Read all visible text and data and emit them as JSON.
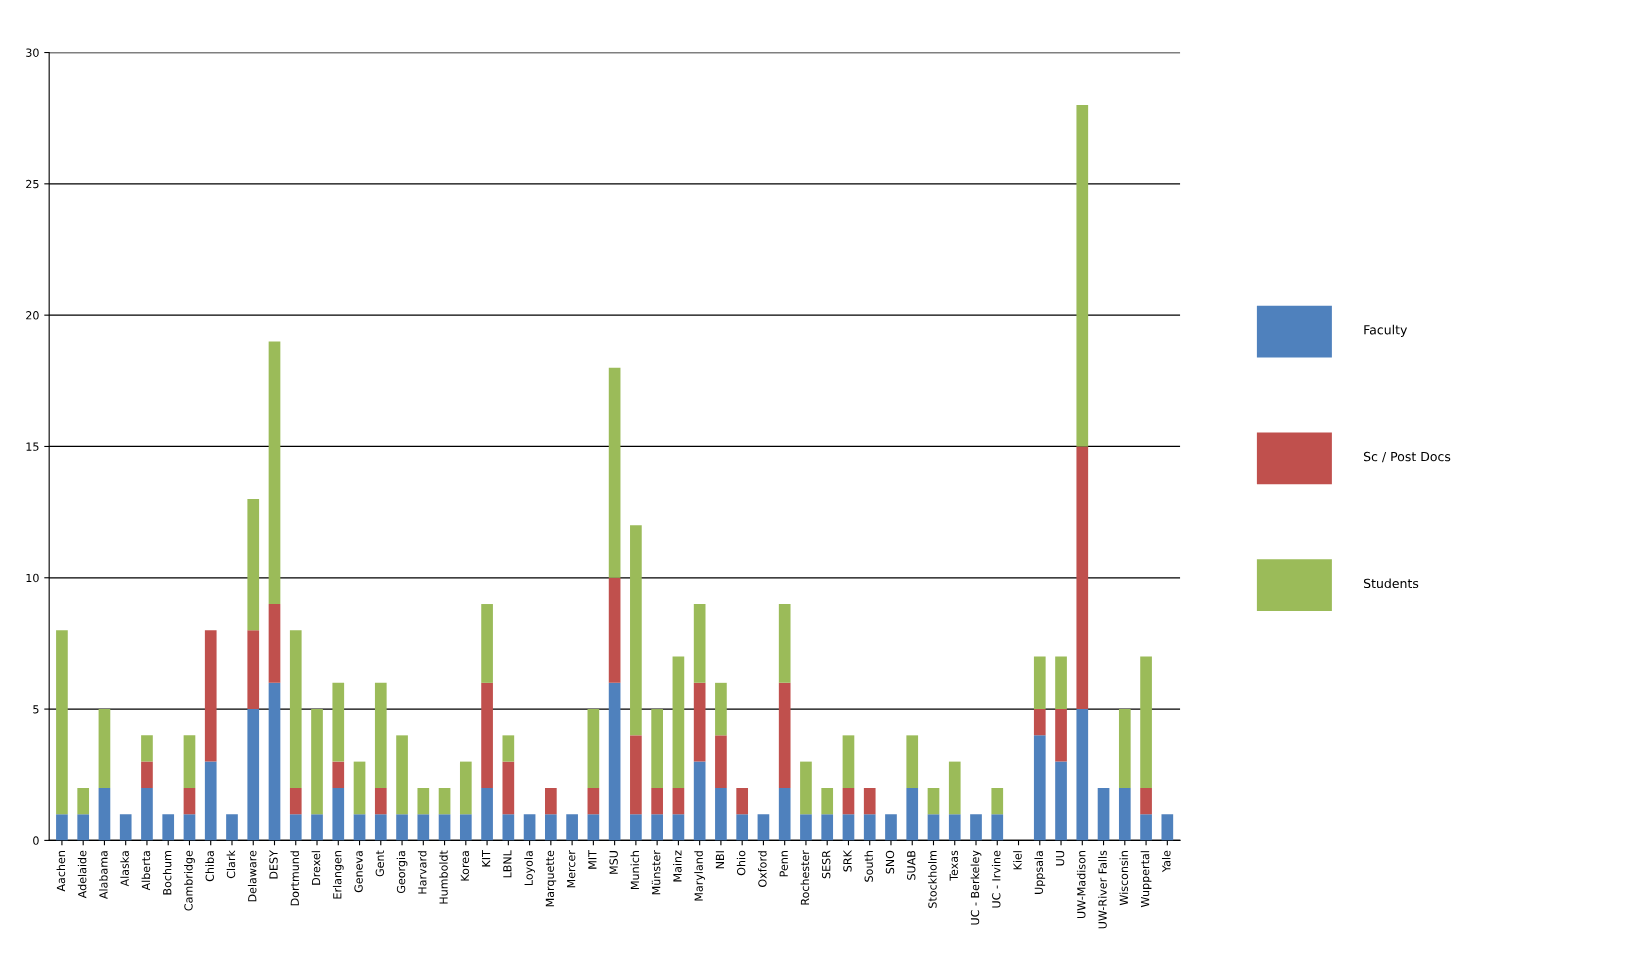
{
  "chart_data": {
    "type": "bar",
    "stacked": true,
    "categories": [
      "Aachen",
      "Adelaide",
      "Alabama",
      "Alaska",
      "Alberta",
      "Bochum",
      "Cambridge",
      "Chiba",
      "Clark",
      "Delaware",
      "DESY",
      "Dortmund",
      "Drexel",
      "Erlangen",
      "Geneva",
      "Gent",
      "Georgia",
      "Harvard",
      "Humboldt",
      "Korea",
      "KIT",
      "LBNL",
      "Loyola",
      "Marquette",
      "Mercer",
      "MIT",
      "MSU",
      "Munich",
      "Münster",
      "Mainz",
      "Maryland",
      "NBI",
      "Ohio",
      "Oxford",
      "Penn",
      "Rochester",
      "SESR",
      "SRK",
      "South",
      "SNO",
      "SUAB",
      "Stockholm",
      "Texas",
      "UC - Berkeley",
      "UC - Irvine",
      "Kiel",
      "Uppsala",
      "UU",
      "UW-Madison",
      "UW-River Falls",
      "Wisconsin",
      "Wuppertal",
      "Yale"
    ],
    "series": [
      {
        "name": "Faculty",
        "color": "#4f81bd",
        "values": [
          1,
          1,
          2,
          1,
          2,
          1,
          1,
          3,
          1,
          5,
          6,
          1,
          1,
          2,
          1,
          1,
          1,
          1,
          1,
          1,
          2,
          1,
          1,
          1,
          1,
          1,
          6,
          1,
          1,
          1,
          3,
          2,
          1,
          1,
          2,
          1,
          1,
          1,
          1,
          1,
          2,
          1,
          1,
          1,
          1,
          0,
          4,
          3,
          5,
          2,
          2,
          1,
          1
        ]
      },
      {
        "name": "Sc / Post Docs",
        "color": "#c0504d",
        "values": [
          0,
          0,
          0,
          0,
          1,
          0,
          1,
          5,
          0,
          3,
          3,
          1,
          0,
          1,
          0,
          1,
          0,
          0,
          0,
          0,
          4,
          2,
          0,
          1,
          0,
          1,
          4,
          3,
          1,
          1,
          3,
          2,
          1,
          0,
          4,
          0,
          0,
          1,
          1,
          0,
          0,
          0,
          0,
          0,
          0,
          0,
          1,
          2,
          10,
          0,
          0,
          1,
          0
        ]
      },
      {
        "name": "Students",
        "color": "#9bbb59",
        "values": [
          7,
          1,
          3,
          0,
          1,
          0,
          2,
          0,
          0,
          5,
          10,
          6,
          4,
          3,
          2,
          4,
          3,
          1,
          1,
          2,
          3,
          1,
          0,
          0,
          0,
          3,
          8,
          8,
          3,
          5,
          3,
          2,
          0,
          0,
          3,
          2,
          1,
          2,
          0,
          0,
          2,
          1,
          2,
          0,
          1,
          0,
          2,
          2,
          13,
          0,
          3,
          5,
          0
        ]
      }
    ],
    "ylim": [
      0,
      30
    ],
    "yticks": [
      0,
      5,
      10,
      15,
      20,
      25,
      30
    ],
    "grid": "y",
    "legend": "right"
  }
}
